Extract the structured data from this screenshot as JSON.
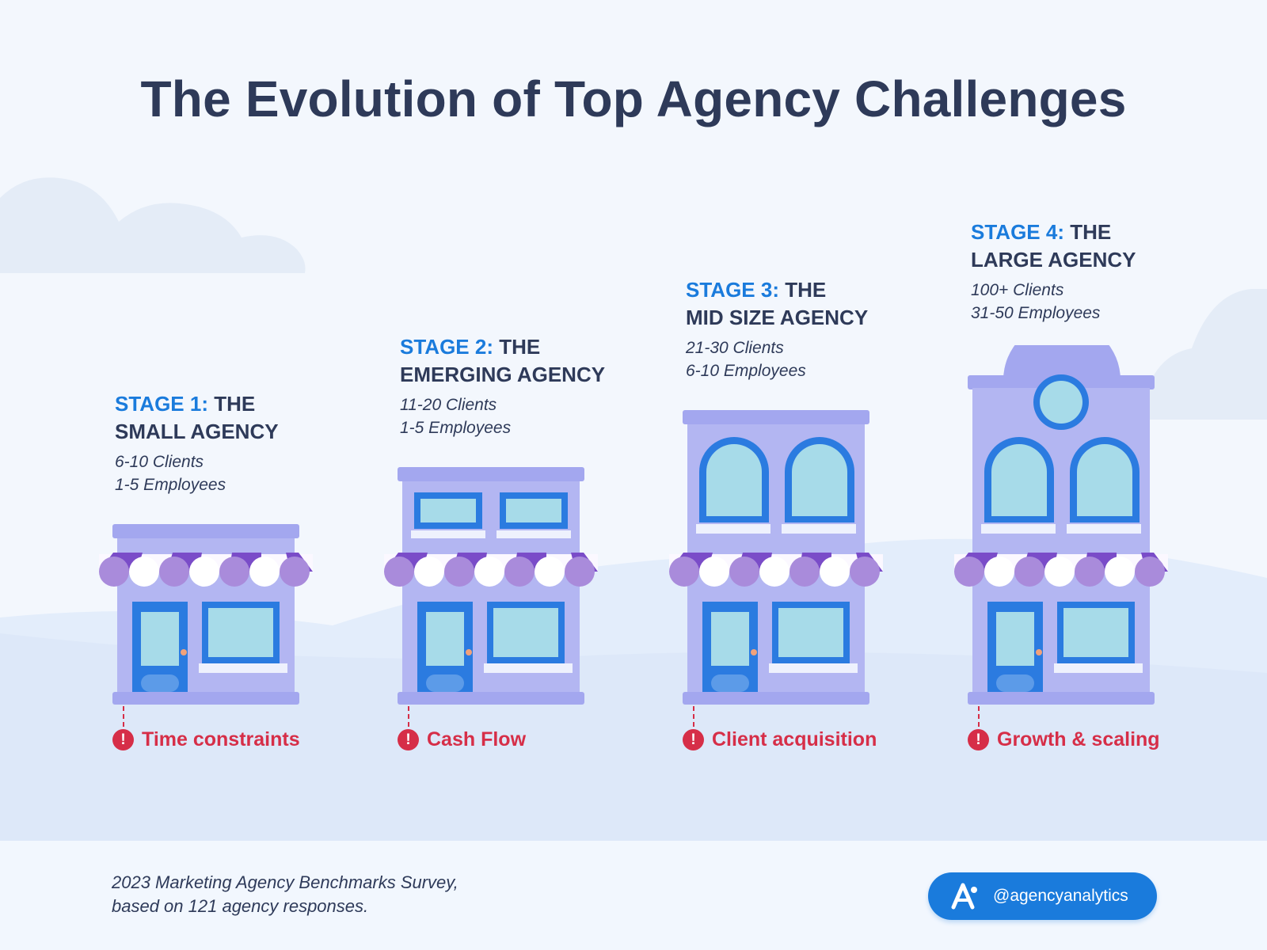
{
  "title": "The Evolution of Top Agency Challenges",
  "stages": [
    {
      "stage": "STAGE 1:",
      "name_line1": "THE",
      "name_line2": "SMALL AGENCY",
      "clients": "6-10 Clients",
      "employees": "1-5 Employees",
      "challenge": "Time constraints"
    },
    {
      "stage": "STAGE 2:",
      "name_line1": "THE",
      "name_line2": "EMERGING AGENCY",
      "clients": "11-20 Clients",
      "employees": "1-5 Employees",
      "challenge": "Cash Flow"
    },
    {
      "stage": "STAGE 3:",
      "name_line1": "THE",
      "name_line2": "MID SIZE AGENCY",
      "clients": "21-30 Clients",
      "employees": "6-10 Employees",
      "challenge": "Client acquisition"
    },
    {
      "stage": "STAGE 4:",
      "name_line1": "THE",
      "name_line2": "LARGE AGENCY",
      "clients": "100+ Clients",
      "employees": "31-50 Employees",
      "challenge": "Growth & scaling"
    }
  ],
  "challenge_icon": "exclamation-alert-icon",
  "footer": {
    "source_line1": "2023 Marketing Agency Benchmarks Survey,",
    "source_line2": "based on 121 agency responses.",
    "handle": "@agencyanalytics",
    "brand_icon": "agencyanalytics-logo-icon"
  },
  "colors": {
    "title": "#2e3a59",
    "stage_number": "#1a7bdc",
    "challenge": "#d62e48",
    "building": "#b3b6f2",
    "building_trim": "#a3a7ef",
    "awning_purple": "#7a4cc8",
    "window_blue": "#2b7be0",
    "glass": "#a7dbe9",
    "badge": "#1a7bdc"
  }
}
